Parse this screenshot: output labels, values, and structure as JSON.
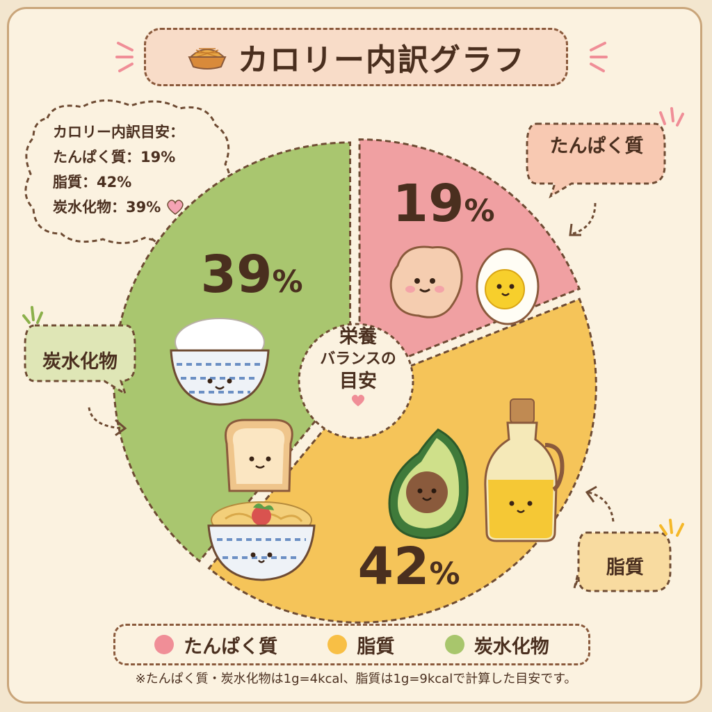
{
  "title": "カロリー内訳グラフ",
  "note": {
    "heading": "カロリー内訳目安：",
    "lines": [
      "たんぱく質：19%",
      "脂質：42%",
      "炭水化物：39%"
    ]
  },
  "bubbles": {
    "protein": "たんぱく質",
    "fat": "脂質",
    "carbs": "炭水化物"
  },
  "center": {
    "line1": "栄養",
    "line2": "バランスの",
    "line3": "目安"
  },
  "legend": [
    {
      "label": "たんぱく質",
      "color": "#f08e97"
    },
    {
      "label": "脂質",
      "color": "#f8bf45"
    },
    {
      "label": "炭水化物",
      "color": "#a8c66c"
    }
  ],
  "footnote": "※たんぱく質・炭水化物は1g=4kcal、脂質は1g=9kcalで計算した目安です。",
  "colors": {
    "protein": "#f0a0a2",
    "fat": "#f5c459",
    "carbs": "#a9c66f",
    "outline": "#6e4b33"
  },
  "icons": [
    "pie-icon",
    "heart-icon",
    "chicken-icon",
    "egg-icon",
    "rice-bowl-icon",
    "toast-icon",
    "pasta-bowl-icon",
    "avocado-icon",
    "oil-bottle-icon"
  ],
  "chart_data": {
    "type": "pie",
    "title": "カロリー内訳グラフ",
    "categories": [
      "たんぱく質",
      "脂質",
      "炭水化物"
    ],
    "values": [
      19,
      42,
      39
    ],
    "labels": [
      "19%",
      "42%",
      "39%"
    ],
    "units": "%",
    "legend_position": "bottom"
  }
}
